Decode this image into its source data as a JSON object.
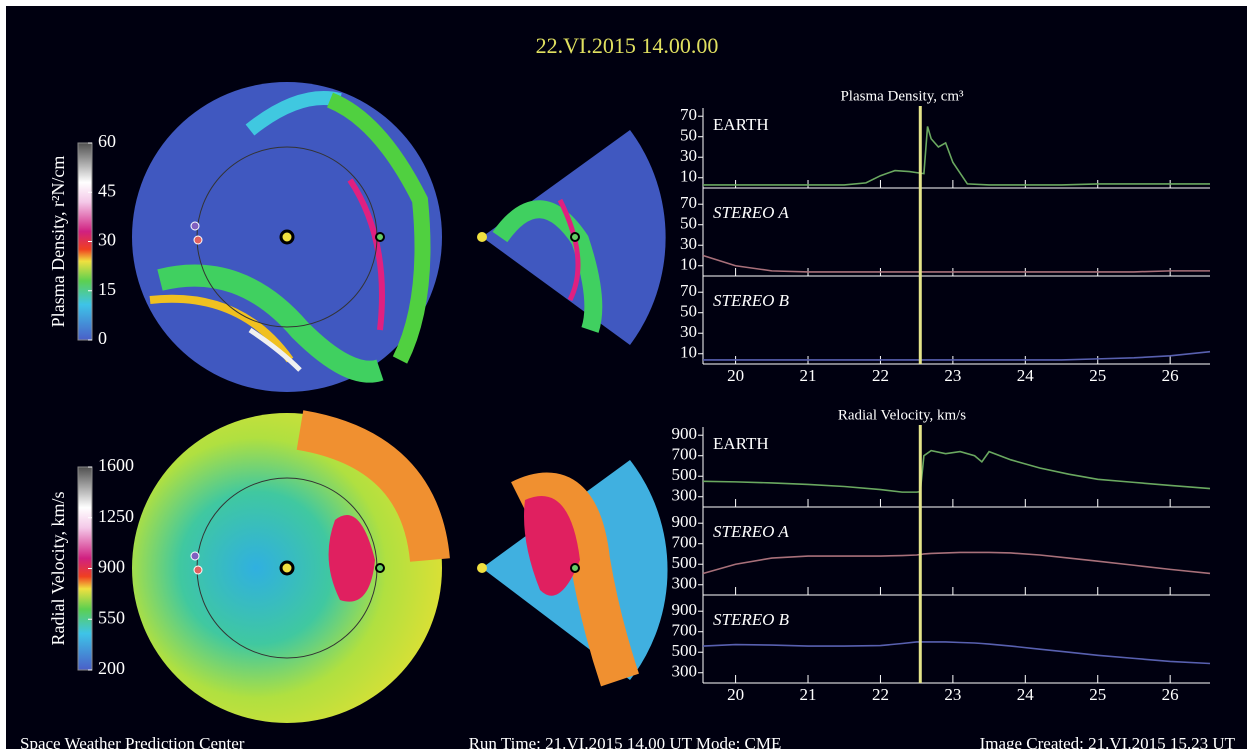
{
  "header": {
    "title": "22.VI.2015 14.00.00"
  },
  "colorbars": [
    {
      "label": "Plasma Density, r²N/cm",
      "lim": [
        0,
        60
      ],
      "ticks": [
        0,
        15,
        30,
        45,
        60
      ]
    },
    {
      "label": "Radial Velocity, km/s",
      "lim": [
        200,
        1600
      ],
      "ticks": [
        200,
        550,
        900,
        1250,
        1600
      ]
    }
  ],
  "chart_data": [
    {
      "type": "line",
      "title": "Plasma Density, cm³",
      "xlim": [
        19.55,
        26.55
      ],
      "xticks": [
        20,
        21,
        22,
        23,
        24,
        25,
        26
      ],
      "ylim": [
        0,
        78
      ],
      "yticks": [
        10,
        30,
        50,
        70
      ],
      "marker_x": 22.55,
      "marker_color": "#e4e48a",
      "x": [
        19.55,
        20,
        20.5,
        21,
        21.5,
        21.8,
        22,
        22.2,
        22.4,
        22.5,
        22.6,
        22.65,
        22.7,
        22.8,
        22.9,
        23,
        23.2,
        23.5,
        24,
        24.5,
        25,
        25.5,
        26,
        26.55
      ],
      "series": [
        {
          "name": "EARTH",
          "color": "#6aa860",
          "values": [
            3,
            3,
            3,
            3,
            3,
            5,
            12,
            17,
            16,
            15,
            14,
            60,
            48,
            40,
            44,
            25,
            4,
            3,
            3,
            3,
            4,
            4,
            4,
            4
          ]
        },
        {
          "name": "STEREO A",
          "color": "#a8707a",
          "values": [
            20,
            10,
            5,
            4,
            4,
            4,
            4,
            4,
            4,
            4,
            4,
            4,
            4,
            4,
            4,
            4,
            4,
            4,
            4,
            4,
            4,
            4,
            5,
            5
          ]
        },
        {
          "name": "STEREO B",
          "color": "#5860b0",
          "values": [
            4,
            4,
            4,
            4,
            4,
            4,
            4,
            4,
            4,
            4,
            4,
            4,
            4,
            4,
            4,
            4,
            4,
            4,
            4,
            4,
            5,
            6,
            8,
            12
          ]
        }
      ]
    },
    {
      "type": "line",
      "title": "Radial Velocity, km/s",
      "xlim": [
        19.55,
        26.55
      ],
      "xticks": [
        20,
        21,
        22,
        23,
        24,
        25,
        26
      ],
      "ylim": [
        200,
        980
      ],
      "yticks": [
        300,
        500,
        700,
        900
      ],
      "marker_x": 22.55,
      "marker_color": "#e4e48a",
      "x": [
        19.55,
        20,
        20.5,
        21,
        21.5,
        22,
        22.3,
        22.5,
        22.55,
        22.6,
        22.7,
        22.9,
        23.1,
        23.3,
        23.4,
        23.5,
        23.8,
        24.2,
        24.6,
        25,
        25.5,
        26,
        26.55
      ],
      "series": [
        {
          "name": "EARTH",
          "color": "#6aa860",
          "values": [
            450,
            445,
            435,
            420,
            400,
            370,
            345,
            345,
            350,
            700,
            750,
            720,
            740,
            700,
            640,
            740,
            660,
            580,
            520,
            470,
            440,
            410,
            380
          ]
        },
        {
          "name": "STEREO A",
          "color": "#a8707a",
          "values": [
            410,
            500,
            560,
            580,
            580,
            580,
            585,
            590,
            595,
            600,
            605,
            610,
            615,
            615,
            615,
            615,
            610,
            590,
            560,
            530,
            490,
            450,
            410
          ]
        },
        {
          "name": "STEREO B",
          "color": "#5860b0",
          "values": [
            560,
            575,
            570,
            560,
            560,
            565,
            585,
            600,
            600,
            600,
            600,
            600,
            595,
            590,
            585,
            580,
            560,
            530,
            500,
            470,
            440,
            410,
            390
          ]
        }
      ]
    }
  ],
  "footer": {
    "left": "Space Weather Prediction Center",
    "center": "Run Time: 21.VI.2015 14.00 UT Mode: CME",
    "right": "Image Created: 21.VI.2015 15.23 UT"
  }
}
